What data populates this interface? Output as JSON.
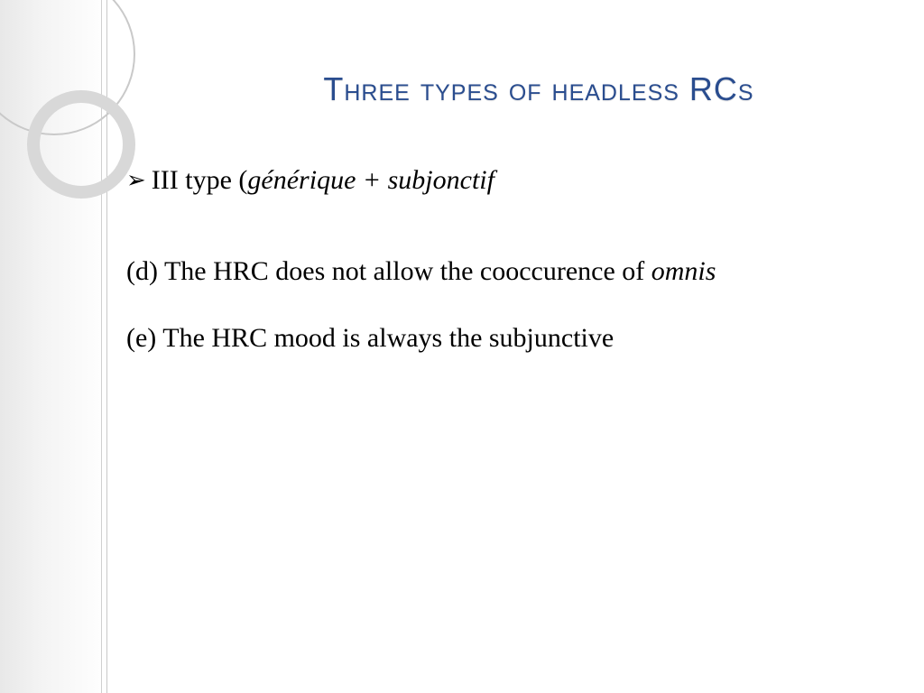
{
  "slide": {
    "title": "Three types of headless RCs",
    "title_color": "#2a4d8f",
    "title_fontsize": 36,
    "body_fontsize": 30,
    "bullet_glyph": "➢",
    "bullet": {
      "prefix": "III type (",
      "italic_part": "générique + subjonctif"
    },
    "para_d": {
      "plain": "(d) The HRC does not allow the cooccurence of ",
      "italic_tail": "omnis"
    },
    "para_e": "(e) The HRC mood is always the subjunctive",
    "background_color": "#ffffff",
    "sidebar_gradient_from": "#e8e8e8",
    "ring_thin_color": "#c9c9c9",
    "ring_thick_color": "#d8d8d8"
  }
}
